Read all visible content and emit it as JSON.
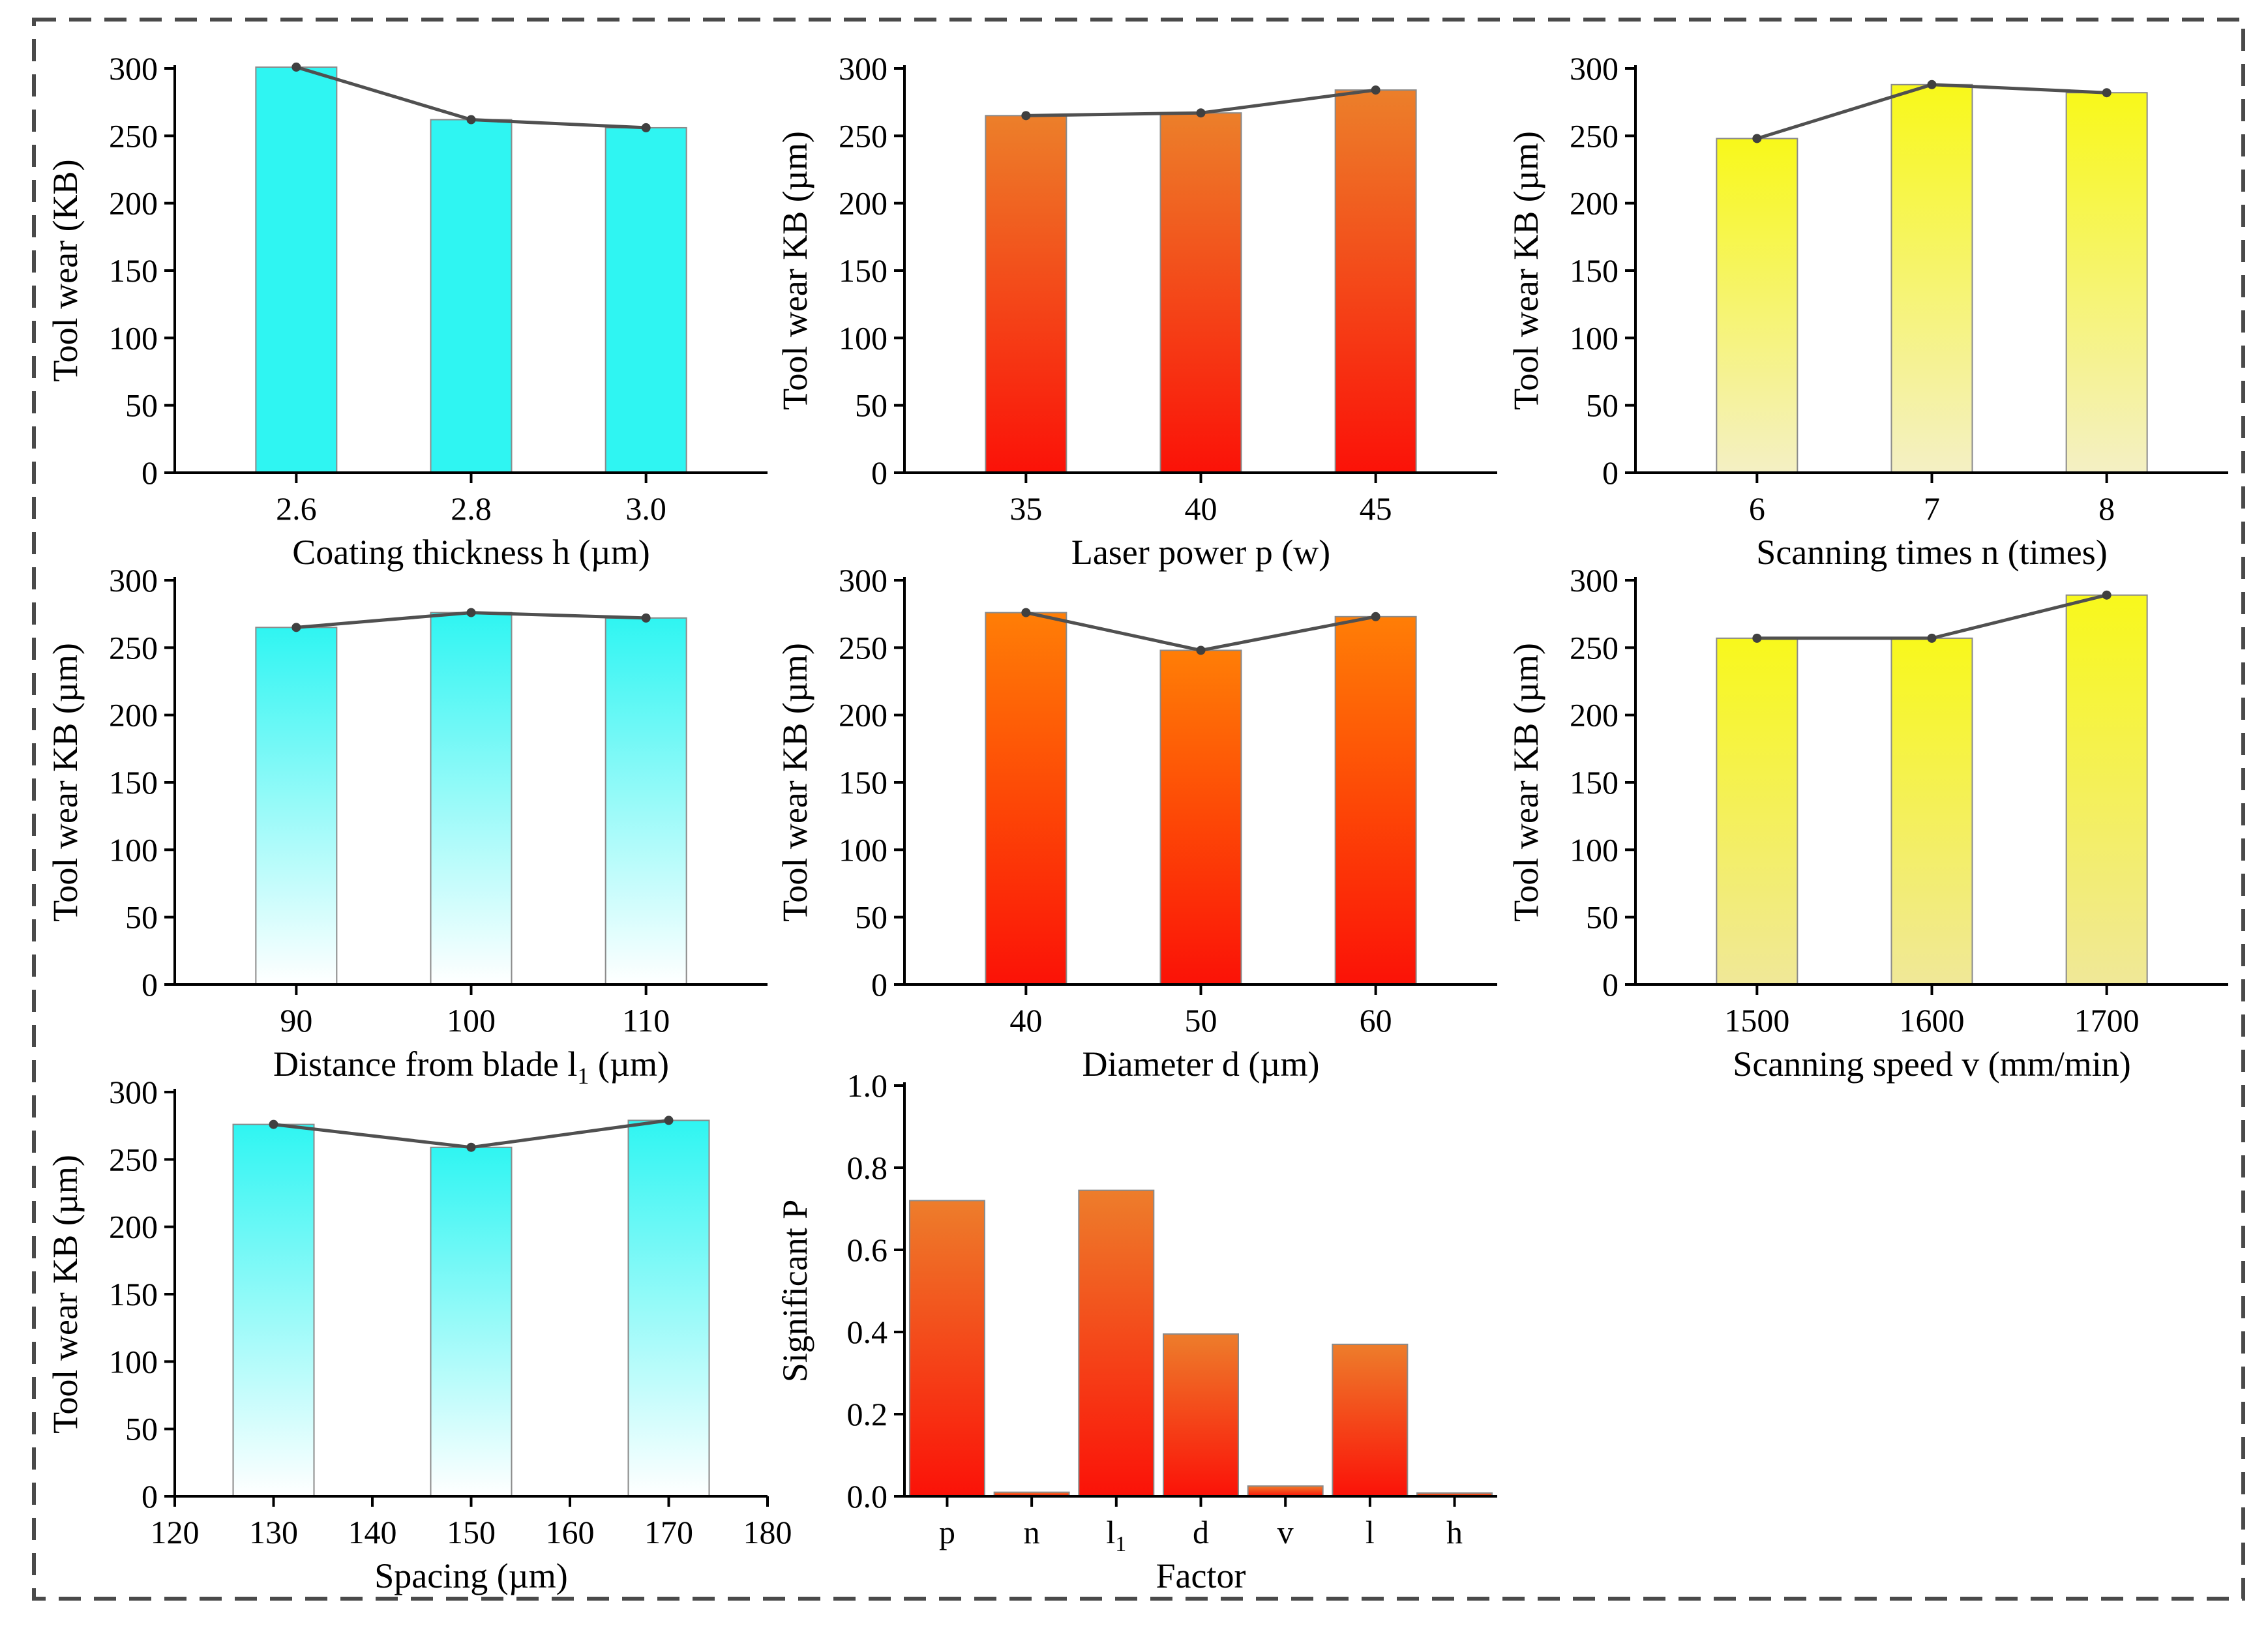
{
  "figure": {
    "frame_style": "dashed"
  },
  "chart_data": [
    {
      "id": "c1",
      "type": "bar",
      "categories": [
        "2.6",
        "2.8",
        "3.0"
      ],
      "values": [
        301,
        262,
        256
      ],
      "xlabel": "Coating thickness h (µm)",
      "ylabel": "Tool wear (KB)",
      "ylim": [
        0,
        300
      ],
      "yticks": [
        0,
        50,
        100,
        150,
        200,
        250,
        300
      ],
      "fill": "flat",
      "colors": [
        "#2ff5f2",
        "#2ff5f2"
      ],
      "trend_line": true
    },
    {
      "id": "c2",
      "type": "bar",
      "categories": [
        "35",
        "40",
        "45"
      ],
      "values": [
        265,
        267,
        284
      ],
      "xlabel": "Laser power p (w)",
      "ylabel": "Tool wear KB (µm)",
      "ylim": [
        0,
        300
      ],
      "yticks": [
        0,
        50,
        100,
        150,
        200,
        250,
        300
      ],
      "fill": "gradient",
      "colors": [
        "#ec7f2a",
        "#fb1208"
      ],
      "trend_line": true
    },
    {
      "id": "c3",
      "type": "bar",
      "categories": [
        "6",
        "7",
        "8"
      ],
      "values": [
        248,
        288,
        282
      ],
      "xlabel": "Scanning times n (times)",
      "ylabel": "Tool wear KB (µm)",
      "ylim": [
        0,
        300
      ],
      "yticks": [
        0,
        50,
        100,
        150,
        200,
        250,
        300
      ],
      "fill": "gradient",
      "colors": [
        "#f8f81a",
        "#f4f0c4"
      ],
      "trend_line": true
    },
    {
      "id": "c4",
      "type": "bar",
      "categories": [
        "90",
        "100",
        "110"
      ],
      "values": [
        265,
        276,
        272
      ],
      "xlabel": "Distance from blade l",
      "xlabel_sub": "1",
      "xlabel_suffix": " (µm)",
      "ylabel": "Tool wear KB (µm)",
      "ylim": [
        0,
        300
      ],
      "yticks": [
        0,
        50,
        100,
        150,
        200,
        250,
        300
      ],
      "fill": "gradient",
      "colors": [
        "#2ff5f2",
        "#ffffff"
      ],
      "trend_line": true
    },
    {
      "id": "c5",
      "type": "bar",
      "categories": [
        "40",
        "50",
        "60"
      ],
      "values": [
        276,
        248,
        273
      ],
      "xlabel": "Diameter d (µm)",
      "ylabel": "Tool wear KB (µm)",
      "ylim": [
        0,
        300
      ],
      "yticks": [
        0,
        50,
        100,
        150,
        200,
        250,
        300
      ],
      "fill": "gradient",
      "colors": [
        "#ff7e06",
        "#fb1207"
      ],
      "trend_line": true
    },
    {
      "id": "c6",
      "type": "bar",
      "categories": [
        "1500",
        "1600",
        "1700"
      ],
      "values": [
        257,
        257,
        289
      ],
      "xlabel": "Scanning speed v (mm/min)",
      "ylabel": "Tool wear KB (µm)",
      "ylim": [
        0,
        300
      ],
      "yticks": [
        0,
        50,
        100,
        150,
        200,
        250,
        300
      ],
      "fill": "gradient",
      "colors": [
        "#f8f81c",
        "#f0e898"
      ],
      "trend_line": true
    },
    {
      "id": "c7",
      "type": "bar",
      "x": [
        130,
        150,
        170
      ],
      "categories": [
        "130",
        "150",
        "170"
      ],
      "values": [
        276,
        259,
        279
      ],
      "xlim": [
        120,
        180
      ],
      "xticks": [
        "120",
        "130",
        "140",
        "150",
        "160",
        "170",
        "180"
      ],
      "xlabel": "Spacing (µm)",
      "ylabel": "Tool wear KB (µm)",
      "ylim": [
        0,
        300
      ],
      "yticks": [
        0,
        50,
        100,
        150,
        200,
        250,
        300
      ],
      "fill": "gradient",
      "colors": [
        "#2ff5f2",
        "#ffffff"
      ],
      "trend_line": true
    },
    {
      "id": "c8",
      "type": "bar",
      "categories": [
        "p",
        "n",
        "l",
        "d",
        "v",
        "l",
        "h"
      ],
      "category_subs": [
        "",
        "",
        "1",
        "",
        "",
        "",
        ""
      ],
      "values": [
        0.72,
        0.01,
        0.745,
        0.395,
        0.025,
        0.37,
        0.008
      ],
      "xlabel": "Factor",
      "ylabel": "Significant P",
      "ylim": [
        0,
        1.0
      ],
      "yticks": [
        "0.0",
        "0.2",
        "0.4",
        "0.6",
        "0.8",
        "1.0"
      ],
      "fill": "gradient",
      "colors": [
        "#ed7d2b",
        "#fb1208"
      ],
      "trend_line": false
    }
  ]
}
